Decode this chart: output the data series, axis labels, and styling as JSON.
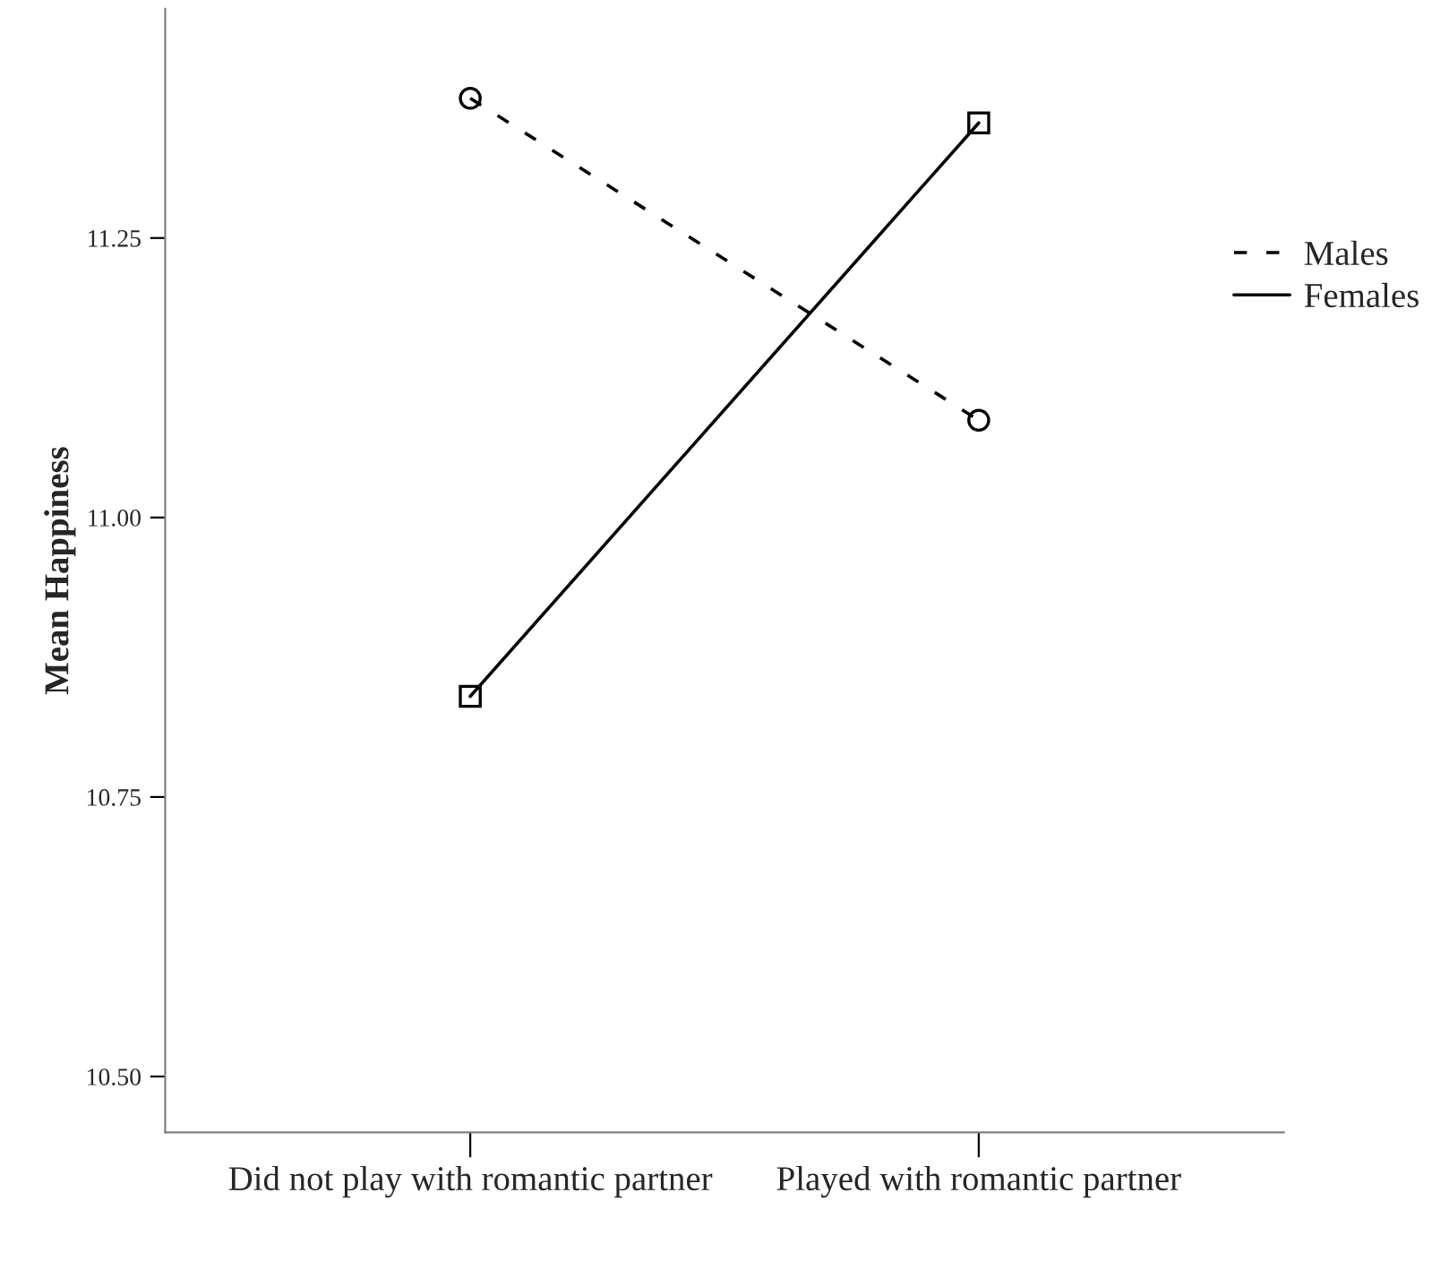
{
  "chart_data": {
    "type": "line",
    "ylabel": "Mean Happiness",
    "categories": [
      "Did not play with romantic partner",
      "Played with romantic partner"
    ],
    "series": [
      {
        "name": "Males",
        "color": "#000000",
        "values": [
          11.375,
          11.087
        ],
        "marker": "circle",
        "line_style": "dashed"
      },
      {
        "name": "Females",
        "color": "#000000",
        "values": [
          10.84,
          11.353
        ],
        "marker": "square",
        "line_style": "solid"
      }
    ],
    "ylim": [
      10.45,
      11.455
    ],
    "yticks": [
      {
        "value": 10.5,
        "label": "10.50"
      },
      {
        "value": 10.75,
        "label": "10.75"
      },
      {
        "value": 11.0,
        "label": "11.00"
      },
      {
        "value": 11.25,
        "label": "11.25"
      }
    ],
    "grid": false,
    "legend": "right"
  }
}
